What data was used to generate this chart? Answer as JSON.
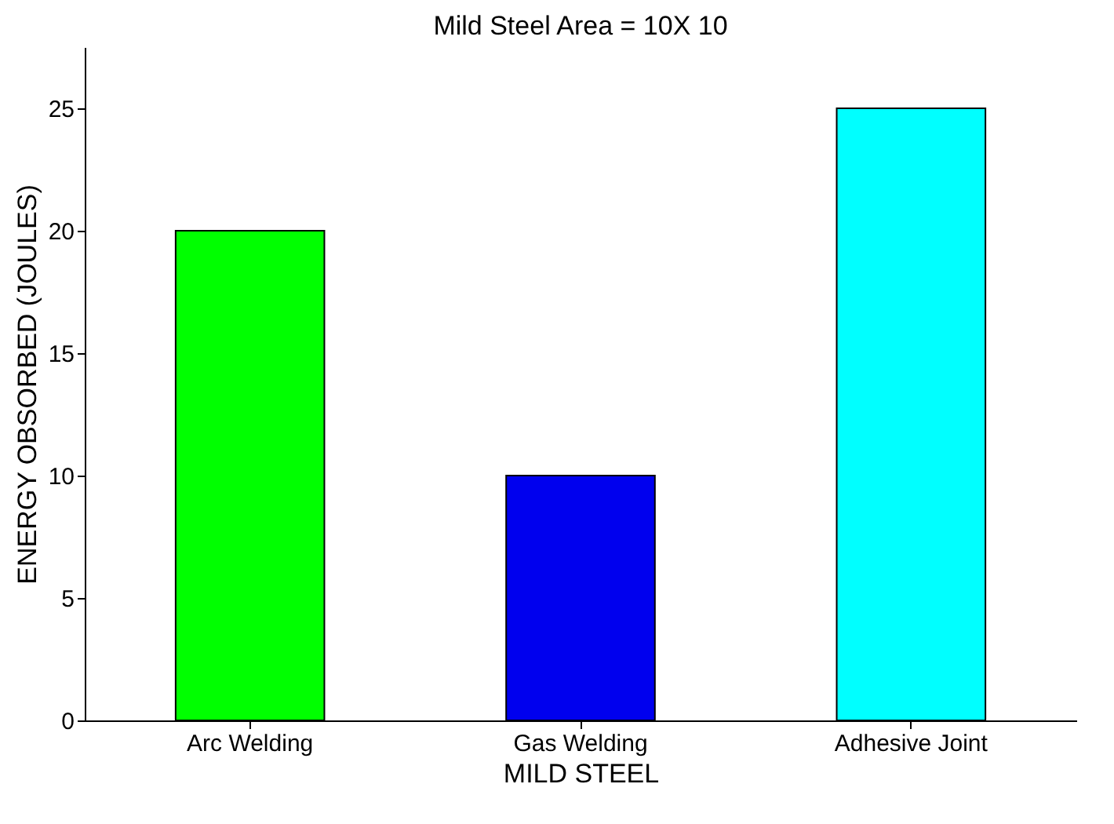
{
  "chart_data": {
    "type": "bar",
    "title": "Mild Steel  Area = 10X 10",
    "xlabel": "MILD STEEL",
    "ylabel": "ENERGY OBSORBED (JOULES)",
    "categories": [
      "Arc Welding",
      "Gas Welding",
      "Adhesive Joint"
    ],
    "values": [
      20,
      10,
      25
    ],
    "colors": [
      "#00ff00",
      "#0000ee",
      "#00ffff"
    ],
    "ylim": [
      0,
      27.5
    ],
    "yticks": [
      0,
      5,
      10,
      15,
      20,
      25
    ],
    "grid": false
  }
}
